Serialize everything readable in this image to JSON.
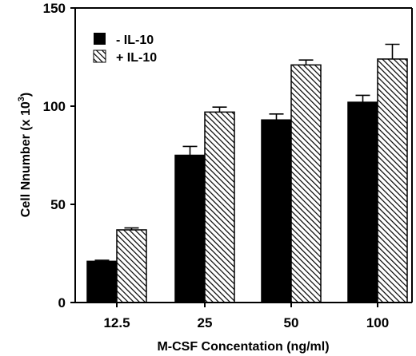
{
  "chart_data": {
    "type": "bar",
    "categories": [
      "12.5",
      "25",
      "50",
      "100"
    ],
    "series": [
      {
        "name": "- IL-10",
        "values": [
          21,
          75,
          93,
          102
        ],
        "errors": [
          0.5,
          4.5,
          3,
          3.5
        ],
        "color": "#000000",
        "pattern": "solid"
      },
      {
        "name": "+ IL-10",
        "values": [
          37,
          97,
          121,
          124
        ],
        "errors": [
          1,
          2.5,
          2.5,
          7.5
        ],
        "color": "#000000",
        "pattern": "diagonal-hatch"
      }
    ],
    "title": "",
    "xlabel": "M-CSF Concentation (ng/ml)",
    "ylabel": "Cell Nnumber (x 10",
    "ylabel_superscript": "3",
    "ylabel_suffix": ")",
    "ylim": [
      0,
      150
    ],
    "yticks": [
      0,
      50,
      100,
      150
    ],
    "grid": false,
    "legend_position": "top-left"
  }
}
